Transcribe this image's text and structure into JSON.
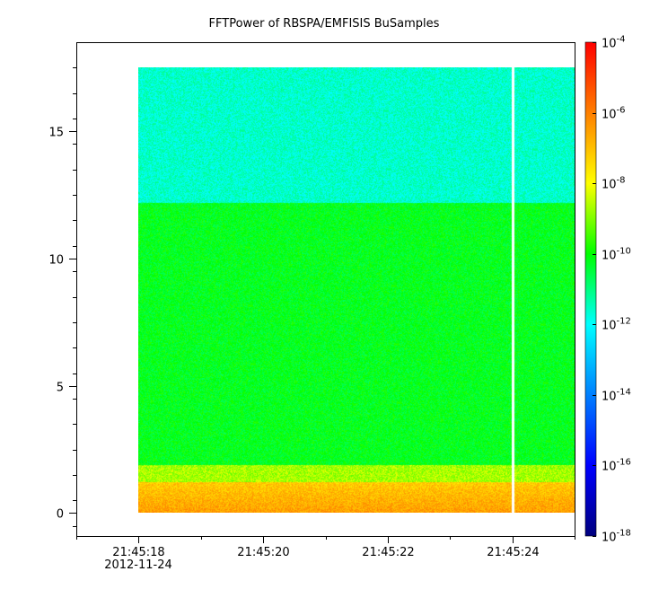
{
  "chart_data": {
    "type": "heatmap",
    "title": "FFTPower of RBSPA/EMFISIS  BuSamples",
    "xlabel": "",
    "ylabel": "",
    "x_date": "2012-11-24",
    "x_ticks": [
      "21:45:18",
      "21:45:20",
      "21:45:22",
      "21:45:24"
    ],
    "x_range": [
      "21:45:17",
      "21:45:25"
    ],
    "data_x_range": [
      "21:45:18",
      "21:45:25"
    ],
    "gap_at": "21:45:24",
    "y_ticks": [
      0,
      5,
      10,
      15
    ],
    "ylim": [
      -0.9,
      18.5
    ],
    "data_y_range": [
      0,
      17.5
    ],
    "colorbar": {
      "scale": "log",
      "range": [
        1e-18,
        0.0001
      ],
      "tick_bases": [
        "10",
        "10",
        "10",
        "10",
        "10",
        "10",
        "10",
        "10"
      ],
      "tick_exponents": [
        "-4",
        "-6",
        "-8",
        "-10",
        "-12",
        "-14",
        "-16",
        "-18"
      ],
      "tick_values": [
        0.0001,
        1e-06,
        1e-08,
        1e-10,
        1e-12,
        1e-14,
        1e-16,
        1e-18
      ],
      "colormap": [
        "#00007f",
        "#0000ff",
        "#007fff",
        "#00ffff",
        "#00ff00",
        "#ffff00",
        "#ff7f00",
        "#ff0000"
      ]
    },
    "bands": [
      {
        "y_range": [
          0,
          1.2
        ],
        "log_power": -7.2
      },
      {
        "y_range": [
          1.2,
          1.9
        ],
        "log_power": -8.7
      },
      {
        "y_range": [
          1.9,
          12.2
        ],
        "log_power": -10.2
      },
      {
        "y_range": [
          12.2,
          17.5
        ],
        "log_power": -11.6
      }
    ],
    "grid": false,
    "legend": "none"
  }
}
